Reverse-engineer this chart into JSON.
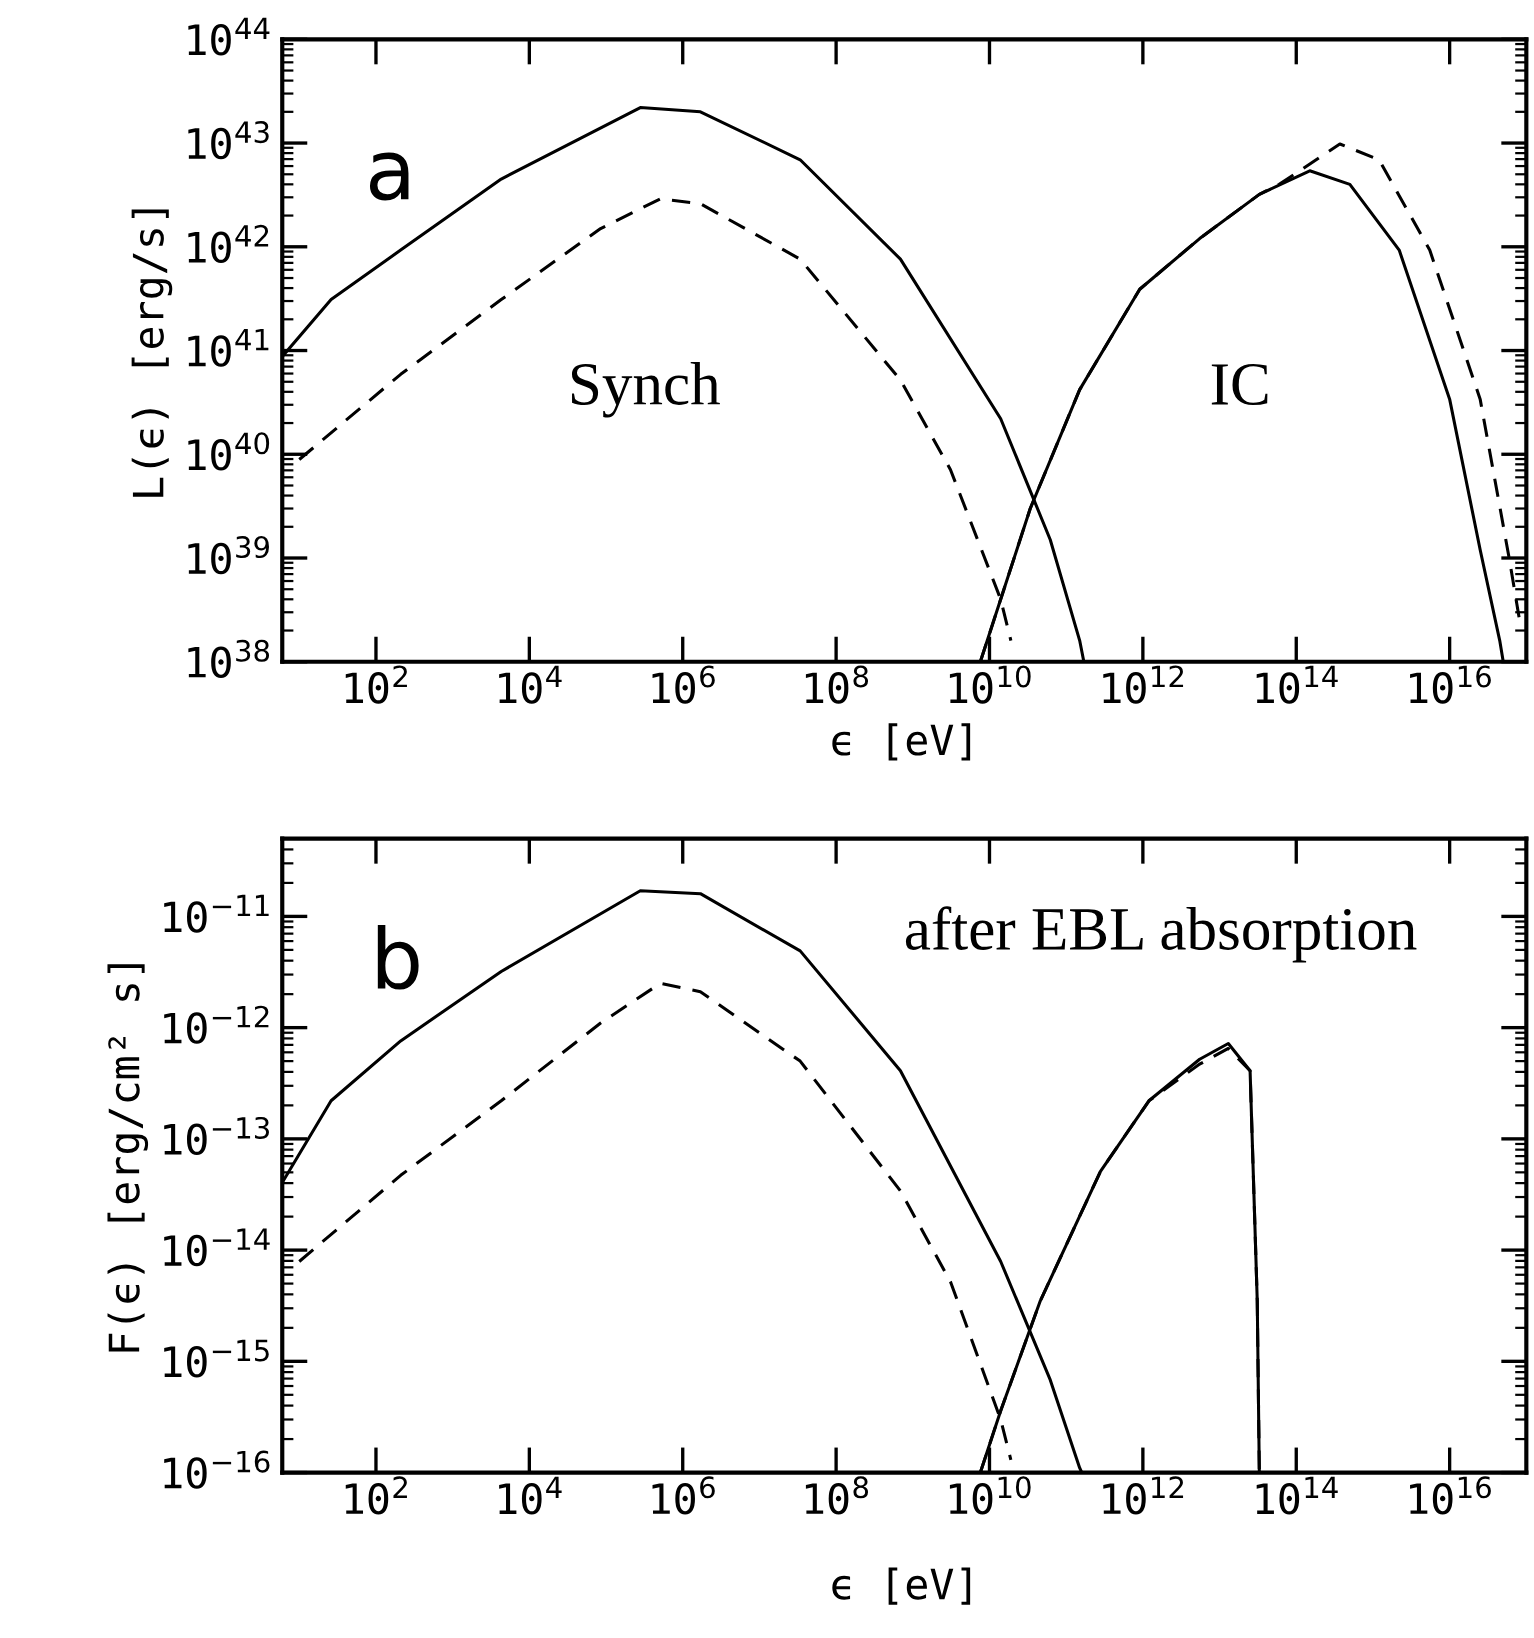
{
  "chart_data": [
    {
      "type": "line",
      "xlabel": "ϵ [eV]",
      "ylabel": "L(ϵ) [erg/s]",
      "log": "xy",
      "grid": false,
      "legend": false,
      "xlim": [
        6,
        1e+17
      ],
      "ylim": [
        1e+38,
        1e+44
      ],
      "xticks": [
        {
          "value": 100.0,
          "label": "10$^{2}$"
        },
        {
          "value": 10000.0,
          "label": "10$^{4}$"
        },
        {
          "value": 1000000.0,
          "label": "10$^{6}$"
        },
        {
          "value": 100000000.0,
          "label": "10$^{8}$"
        },
        {
          "value": 10000000000.0,
          "label": "10$^{10}$"
        },
        {
          "value": 1000000000000.0,
          "label": "10$^{12}$"
        },
        {
          "value": 100000000000000.0,
          "label": "10$^{14}$"
        },
        {
          "value": 1e+16,
          "label": "10$^{16}$"
        }
      ],
      "yticks": [
        {
          "value": 1e+38,
          "label": "10$^{38}$"
        },
        {
          "value": 1e+39,
          "label": "10$^{39}$"
        },
        {
          "value": 1e+40,
          "label": "10$^{40}$"
        },
        {
          "value": 1e+41,
          "label": "10$^{41}$"
        },
        {
          "value": 1e+42,
          "label": "10$^{42}$"
        },
        {
          "value": 1e+43,
          "label": "10$^{43}$"
        },
        {
          "value": 1e+44,
          "label": "10$^{44}$"
        }
      ],
      "annotations": [
        "a",
        "Synch",
        "IC"
      ],
      "series": [
        {
          "color": "#000000",
          "line_style": "solid",
          "x": [
            6.2,
            26,
            210,
            4300,
            280000.0,
            1700000.0,
            34000000.0,
            690000000.0,
            14000000000.0,
            62000000000.0,
            150000000000.0,
            170000000000.0
          ],
          "values": [
            9e+40,
            3.1e+41,
            9.3e+41,
            4.5e+42,
            2.2e+43,
            2e+43,
            6.9e+42,
            7.6e+41,
            2.2e+40,
            1.5e+39,
            1.6e+38,
            1e+38
          ]
        },
        {
          "color": "#000000",
          "line_style": "dashed",
          "x": [
            10,
            210,
            4300,
            85000.0,
            510000.0,
            1700000.0,
            34000000.0,
            690000000.0,
            3100000000.0,
            14000000000.0,
            19000000000.0
          ],
          "values": [
            8.9e+39,
            5.9e+40,
            3.1e+41,
            1.5e+42,
            2.9e+42,
            2.6e+42,
            7.6e+41,
            5.2e+40,
            7.1e+39,
            4e+38,
            1.6e+38
          ]
        },
        {
          "color": "#000000",
          "line_style": "solid",
          "x": [
            7600000000.0,
            14000000000.0,
            34000000000.0,
            150000000000.0,
            910000000000.0,
            5500000000000.0,
            33000000000000.0,
            150000000000000.0,
            500000000000000.0,
            2200000000000000.0,
            1e+16,
            2.5e+16,
            4.5e+16,
            5e+16
          ],
          "values": [
            1e+38,
            4e+38,
            3e+39,
            4.2e+40,
            3.9e+41,
            1.2e+42,
            3.2e+42,
            5.4e+42,
            4e+42,
            9.3e+41,
            3.4e+40,
            1.2e+39,
            1.6e+38,
            1e+38
          ]
        },
        {
          "color": "#000000",
          "line_style": "dashed",
          "x": [
            7600000000.0,
            14000000000.0,
            34000000000.0,
            150000000000.0,
            910000000000.0,
            5500000000000.0,
            33000000000000.0,
            60000000000000.0,
            370000000000000.0,
            1200000000000000.0,
            5500000000000000.0,
            2.5e+16,
            6e+16,
            8.1e+16
          ],
          "values": [
            1e+38,
            4e+38,
            3e+39,
            4.2e+40,
            3.9e+41,
            1.2e+42,
            3.2e+42,
            4e+42,
            9.8e+42,
            6.9e+42,
            9.3e+41,
            3.4e+40,
            9.8e+38,
            2.6e+38
          ]
        }
      ]
    },
    {
      "type": "line",
      "xlabel": "ϵ [eV]",
      "ylabel": "F(ϵ) [erg/cm² s]",
      "log": "xy",
      "grid": false,
      "legend": false,
      "xlim": [
        6,
        1e+17
      ],
      "ylim": [
        1e-16,
        5e-11
      ],
      "xticks": [
        {
          "value": 100.0,
          "label": "10$^{2}$"
        },
        {
          "value": 10000.0,
          "label": "10$^{4}$"
        },
        {
          "value": 1000000.0,
          "label": "10$^{6}$"
        },
        {
          "value": 100000000.0,
          "label": "10$^{8}$"
        },
        {
          "value": 10000000000.0,
          "label": "10$^{10}$"
        },
        {
          "value": 1000000000000.0,
          "label": "10$^{12}$"
        },
        {
          "value": 100000000000000.0,
          "label": "10$^{14}$"
        },
        {
          "value": 1e+16,
          "label": "10$^{16}$"
        }
      ],
      "yticks": [
        {
          "value": 1e-16,
          "label": "10$^{−16}$"
        },
        {
          "value": 1e-15,
          "label": "10$^{−15}$"
        },
        {
          "value": 1e-14,
          "label": "10$^{−14}$"
        },
        {
          "value": 1e-13,
          "label": "10$^{−13}$"
        },
        {
          "value": 1e-12,
          "label": "10$^{−12}$"
        },
        {
          "value": 1e-11,
          "label": "10$^{−11}$"
        }
      ],
      "annotations": [
        "b",
        "after EBL absorption"
      ],
      "series": [
        {
          "color": "#000000",
          "line_style": "solid",
          "x": [
            6.2,
            26,
            210,
            4300,
            280000.0,
            1700000.0,
            34000000.0,
            690000000.0,
            14000000000.0,
            62000000000.0,
            150000000000.0,
            160000000000.0
          ],
          "values": [
            4.2e-14,
            2.2e-13,
            7.6e-13,
            3.2e-12,
            1.7e-11,
            1.6e-11,
            4.9e-12,
            4.1e-13,
            7.9e-15,
            6.8e-16,
            1.1e-16,
            1e-16
          ]
        },
        {
          "color": "#000000",
          "line_style": "dashed",
          "x": [
            10,
            210,
            4300,
            85000.0,
            510000.0,
            1700000.0,
            34000000.0,
            690000000.0,
            3100000000.0,
            14000000000.0,
            19000000000.0
          ],
          "values": [
            7.9e-15,
            4.7e-14,
            2.2e-13,
            1.1e-12,
            2.5e-12,
            2.1e-12,
            5e-13,
            3.4e-14,
            5.2e-15,
            3e-16,
            1.3e-16
          ]
        },
        {
          "color": "#000000",
          "line_style": "solid",
          "x": [
            7600000000.0,
            14000000000.0,
            46000000000.0,
            280000000000.0,
            1200000000000.0,
            5500000000000.0,
            13000000000000.0,
            25000000000000.0,
            31000000000000.0,
            33000000000000.0
          ],
          "values": [
            1e-16,
            3.6e-16,
            3.5e-15,
            5.1e-14,
            2.2e-13,
            5.2e-13,
            7.2e-13,
            4.1e-13,
            3.5e-15,
            1e-16
          ]
        },
        {
          "color": "#000000",
          "line_style": "dashed",
          "x": [
            7600000000.0,
            14000000000.0,
            46000000000.0,
            280000000000.0,
            1200000000000.0,
            5500000000000.0,
            13000000000000.0,
            25000000000000.0,
            31000000000000.0,
            33000000000000.0
          ],
          "values": [
            1e-16,
            3.6e-16,
            3.5e-15,
            5.1e-14,
            2.2e-13,
            4.7e-13,
            6.5e-13,
            4.1e-13,
            3.5e-15,
            1e-16
          ]
        }
      ]
    }
  ]
}
